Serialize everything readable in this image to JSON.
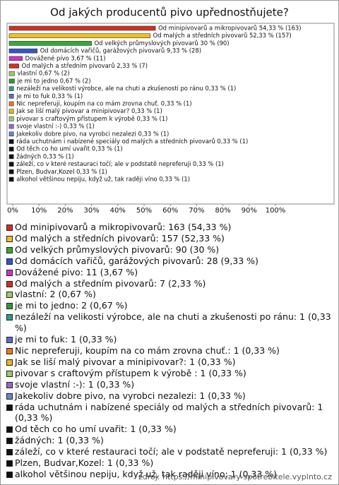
{
  "chart_data": {
    "type": "bar",
    "orientation": "horizontal",
    "title": "Od jakých producentů pivo upřednostňujete?",
    "bar_labels": [
      "Od minipivovarů a mikropivovarů 54,33 % (163)",
      "Od malých a středních pivovarů 52,33 % (157)",
      "Od velkých průmyslových pivovarů 30 % (90)",
      "Od domácích vařičů, garážových pivovarů 9,33 % (28)",
      "Dovážené pivo 3,67 % (11)",
      "Od malých a středním pivovarů 2,33 % (7)",
      "vlastní 0,67 % (2)",
      "je mi to jedno 0,67 % (2)",
      "nezáleží na velikosti výrobce, ale na chuti a zkušenosti po ránu 0,33 % (1)",
      "je mi to fuk 0,33 % (1)",
      "Nic nepreferuji, koupím na co mám zrovna chuť. 0,33 % (1)",
      "Jak se liší malý pivovar a minipivovar? 0,33 % (1)",
      "pivovar s craftovým přístupem k výrobě  0,33 % (1)",
      "svoje vlastní :-) 0,33 % (1)",
      "Jakekoliv dobre pivo, na vyrobci nezalezi 0,33 % (1)",
      "ráda uchutnám i nabízené speciály od malých a středních pivovarů 0,33 % (1)",
      "Od těch co ho umí uvařit 0,33 % (1)",
      "žádných 0,33 % (1)",
      "záleží, co v které restauraci točí; ale v podstatě nepreferuji 0,33 % (1)",
      "Plzen, Budvar,Kozel 0,33 % (1)",
      "alkohol většinou nepiju, když už, tak raději víno 0,33 % (1)"
    ],
    "values": [
      54.33,
      52.33,
      30,
      9.33,
      3.67,
      2.33,
      0.67,
      0.67,
      0.33,
      0.33,
      0.33,
      0.33,
      0.33,
      0.33,
      0.33,
      0.33,
      0.33,
      0.33,
      0.33,
      0.33,
      0.33
    ],
    "colors": [
      "#cc3322",
      "#f0c020",
      "#33aa33",
      "#3355cc",
      "#cc33cc",
      "#cc3322",
      "#99cc66",
      "#339933",
      "#339988",
      "#6666cc",
      "#ee7722",
      "#ddbb22",
      "#99cc66",
      "#9966cc",
      "#6688cc",
      "#111111",
      "#111111",
      "#111111",
      "#111111",
      "#111111",
      "#111111"
    ],
    "legend_labels": [
      "Od minipivovarů a mikropivovarů: 163 (54,33 %)",
      "Od malých a středních pivovarů: 157 (52,33 %)",
      "Od velkých průmyslových pivovarů: 90 (30 %)",
      "Od domácích vařičů, garážových pivovarů: 28 (9,33 %)",
      "Dovážené pivo: 11 (3,67 %)",
      "Od malých a středním pivovarů: 7 (2,33 %)",
      "vlastní: 2 (0,67 %)",
      "je mi to jedno: 2 (0,67 %)",
      "nezáleží na velikosti výrobce, ale na chuti a zkušenosti po ránu: 1 (0,33 %)",
      "je mi to fuk: 1 (0,33 %)",
      "Nic nepreferuji, koupím na co mám zrovna chuť.: 1 (0,33 %)",
      "Jak se liší malý pivovar a minipivovar?: 1 (0,33 %)",
      "pivovar s craftovým přístupem k výrobě : 1 (0,33 %)",
      "svoje vlastní :-): 1 (0,33 %)",
      "Jakekoliv dobre pivo, na vyrobci nezalezi: 1 (0,33 %)",
      "ráda uchutnám i nabízené speciály od malých a středních pivovarů: 1 (0,33 %)",
      "Od těch co ho umí uvařit: 1 (0,33 %)",
      "žádných: 1 (0,33 %)",
      "záleží, co v které restauraci točí; ale v podstatě nepreferuji: 1 (0,33 %)",
      "Plzen, Budvar,Kozel: 1 (0,33 %)",
      "alkohol většinou nepiju, když už, tak raději víno: 1 (0,33 %)"
    ],
    "xlim": [
      0,
      100
    ],
    "xticks": [
      {
        "value": 0,
        "label": "0%"
      },
      {
        "value": 10,
        "label": "10%"
      },
      {
        "value": 20,
        "label": "20%"
      },
      {
        "value": 30,
        "label": "30%"
      },
      {
        "value": 40,
        "label": "40%"
      },
      {
        "value": 50,
        "label": "50%"
      },
      {
        "value": 60,
        "label": "60%"
      },
      {
        "value": 70,
        "label": "70%"
      },
      {
        "value": 80,
        "label": "80%"
      },
      {
        "value": 90,
        "label": "90%"
      },
      {
        "value": 100,
        "label": "100%"
      }
    ],
    "grid": false,
    "source": "zdroj: https://minipivovary-spotrebitele.vyplnto.cz"
  }
}
